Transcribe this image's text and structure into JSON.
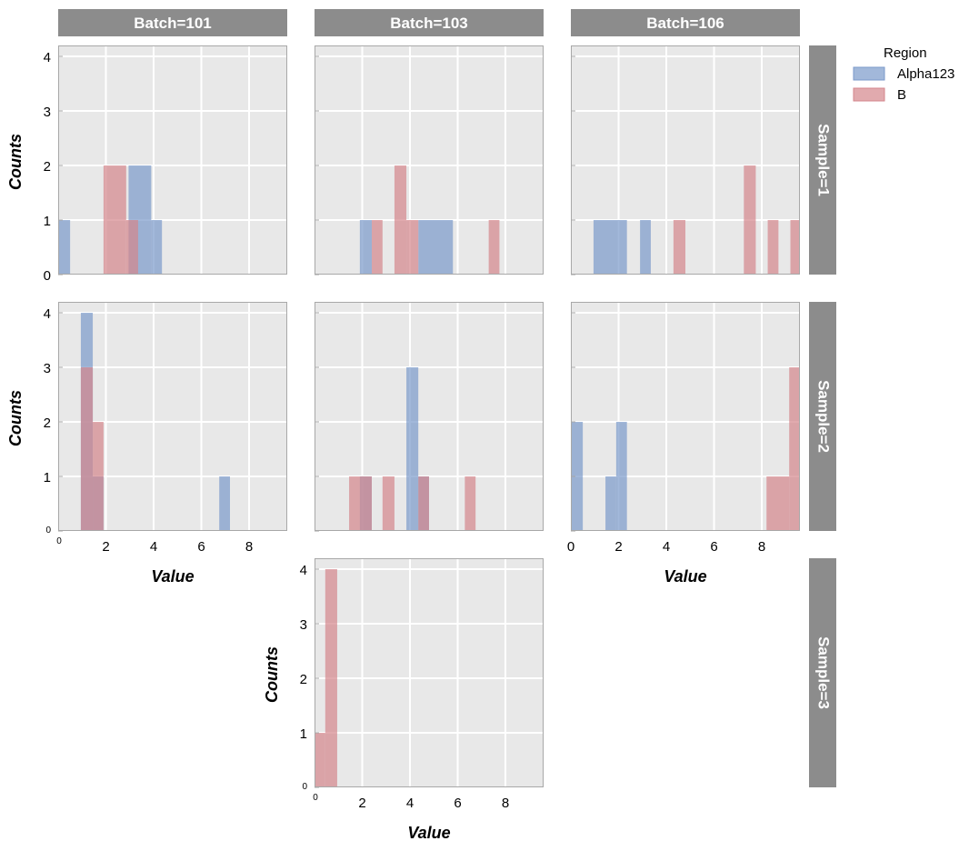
{
  "chart_data": {
    "type": "histogram-facet-grid",
    "col_var": "Batch",
    "row_var": "Sample",
    "columns": [
      "Batch=101",
      "Batch=103",
      "Batch=106"
    ],
    "rows": [
      "Sample=1",
      "Sample=2",
      "Sample=3"
    ],
    "xlabel": "Value",
    "ylabel": "Counts",
    "xlim": [
      0,
      9.6
    ],
    "ylim": [
      0,
      4.2
    ],
    "x_ticks": [
      0,
      2,
      4,
      6,
      8
    ],
    "x_tick_labels": [
      "0",
      "2",
      "4",
      "6",
      "8"
    ],
    "y_ticks": [
      0,
      1,
      2,
      3,
      4
    ],
    "y_tick_labels": [
      "0",
      "1",
      "2",
      "3",
      "4"
    ],
    "legend": {
      "title": "Region",
      "entries": [
        {
          "name": "Alpha123",
          "color": "#7b9acb"
        },
        {
          "name": "B",
          "color": "#d4868c"
        }
      ]
    },
    "colors": {
      "Alpha123": "#7b9acb",
      "B": "#d4868c"
    },
    "panels": [
      {
        "row": 0,
        "col": 0,
        "bars": [
          {
            "series": "Alpha123",
            "x0": 0.0,
            "x1": 0.5,
            "count": 1
          },
          {
            "series": "Alpha123",
            "x0": 2.95,
            "x1": 3.9,
            "count": 2
          },
          {
            "series": "Alpha123",
            "x0": 3.9,
            "x1": 4.35,
            "count": 1
          },
          {
            "series": "B",
            "x0": 1.9,
            "x1": 2.85,
            "count": 2
          },
          {
            "series": "B",
            "x0": 2.85,
            "x1": 3.35,
            "count": 1
          }
        ]
      },
      {
        "row": 0,
        "col": 1,
        "bars": [
          {
            "series": "Alpha123",
            "x0": 1.9,
            "x1": 2.4,
            "count": 1
          },
          {
            "series": "Alpha123",
            "x0": 4.35,
            "x1": 5.8,
            "count": 1
          },
          {
            "series": "B",
            "x0": 2.4,
            "x1": 2.85,
            "count": 1
          },
          {
            "series": "B",
            "x0": 3.35,
            "x1": 3.85,
            "count": 2
          },
          {
            "series": "B",
            "x0": 3.85,
            "x1": 4.35,
            "count": 1
          },
          {
            "series": "B",
            "x0": 7.3,
            "x1": 7.75,
            "count": 1
          }
        ]
      },
      {
        "row": 0,
        "col": 2,
        "bars": [
          {
            "series": "Alpha123",
            "x0": 0.95,
            "x1": 2.35,
            "count": 1
          },
          {
            "series": "Alpha123",
            "x0": 2.9,
            "x1": 3.35,
            "count": 1
          },
          {
            "series": "B",
            "x0": 4.3,
            "x1": 4.8,
            "count": 1
          },
          {
            "series": "B",
            "x0": 7.25,
            "x1": 7.75,
            "count": 2
          },
          {
            "series": "B",
            "x0": 8.25,
            "x1": 8.7,
            "count": 1
          },
          {
            "series": "B",
            "x0": 9.2,
            "x1": 9.6,
            "count": 1
          }
        ]
      },
      {
        "row": 1,
        "col": 0,
        "bars": [
          {
            "series": "Alpha123",
            "x0": 0.95,
            "x1": 1.45,
            "count": 4
          },
          {
            "series": "Alpha123",
            "x0": 1.45,
            "x1": 1.9,
            "count": 1
          },
          {
            "series": "Alpha123",
            "x0": 6.75,
            "x1": 7.2,
            "count": 1
          },
          {
            "series": "B",
            "x0": 0.95,
            "x1": 1.45,
            "count": 3
          },
          {
            "series": "B",
            "x0": 1.45,
            "x1": 1.9,
            "count": 2
          }
        ]
      },
      {
        "row": 1,
        "col": 1,
        "bars": [
          {
            "series": "Alpha123",
            "x0": 1.9,
            "x1": 2.4,
            "count": 1
          },
          {
            "series": "Alpha123",
            "x0": 3.85,
            "x1": 4.35,
            "count": 3
          },
          {
            "series": "Alpha123",
            "x0": 4.35,
            "x1": 4.8,
            "count": 1
          },
          {
            "series": "B",
            "x0": 1.45,
            "x1": 2.4,
            "count": 1
          },
          {
            "series": "B",
            "x0": 2.85,
            "x1": 3.35,
            "count": 1
          },
          {
            "series": "B",
            "x0": 4.35,
            "x1": 4.8,
            "count": 1
          },
          {
            "series": "B",
            "x0": 6.3,
            "x1": 6.75,
            "count": 1
          }
        ]
      },
      {
        "row": 1,
        "col": 2,
        "bars": [
          {
            "series": "Alpha123",
            "x0": 0.0,
            "x1": 0.5,
            "count": 2
          },
          {
            "series": "Alpha123",
            "x0": 1.45,
            "x1": 1.9,
            "count": 1
          },
          {
            "series": "Alpha123",
            "x0": 1.9,
            "x1": 2.35,
            "count": 2
          },
          {
            "series": "B",
            "x0": 8.2,
            "x1": 9.15,
            "count": 1
          },
          {
            "series": "B",
            "x0": 9.15,
            "x1": 9.6,
            "count": 3
          }
        ]
      },
      {
        "row": 2,
        "col": 1,
        "bars": [
          {
            "series": "B",
            "x0": 0.0,
            "x1": 0.45,
            "count": 1
          },
          {
            "series": "B",
            "x0": 0.45,
            "x1": 0.95,
            "count": 4
          }
        ]
      }
    ]
  }
}
